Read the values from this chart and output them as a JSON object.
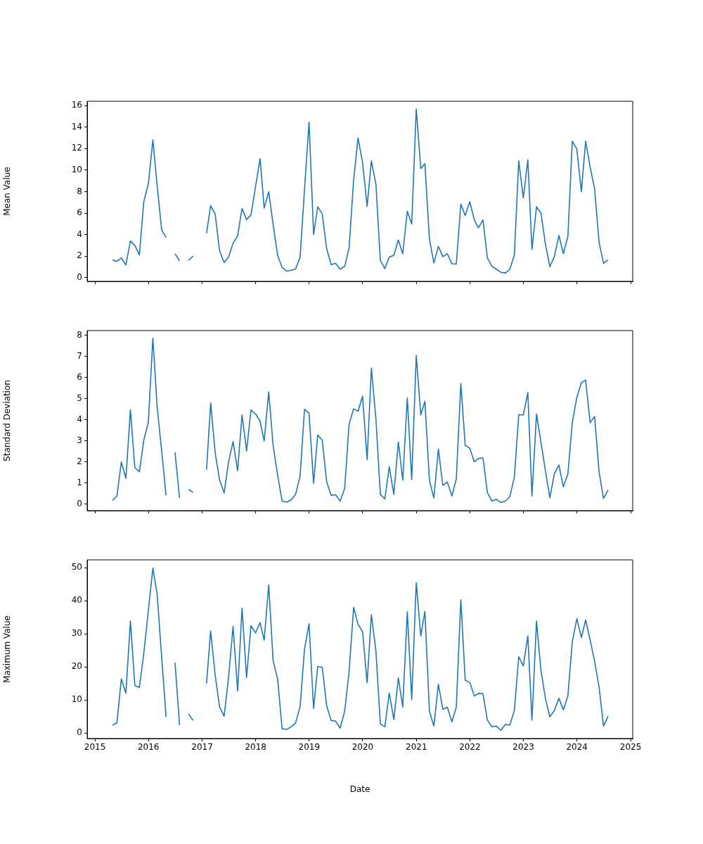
{
  "chart_data": [
    {
      "type": "line",
      "ylabel": "Mean Value",
      "color": "#1f77b4",
      "tick_labels": "y",
      "x": [
        "2015-04-30",
        "2015-05-31",
        "2015-06-30",
        "2015-07-31",
        "2015-08-31",
        "2015-09-30",
        "2015-10-31",
        "2015-11-30",
        "2015-12-31",
        "2016-01-31",
        "2016-02-29",
        "2016-03-31",
        "2016-04-30",
        "2016-05-31",
        "2016-06-30",
        "2016-07-31",
        "2016-08-31",
        "2016-09-30",
        "2016-10-31",
        "2016-11-30",
        "2016-12-31",
        "2017-01-31",
        "2017-02-28",
        "2017-03-31",
        "2017-04-30",
        "2017-05-31",
        "2017-06-30",
        "2017-07-31",
        "2017-08-31",
        "2017-09-30",
        "2017-10-31",
        "2017-11-30",
        "2017-12-31",
        "2018-01-31",
        "2018-02-28",
        "2018-03-31",
        "2018-04-30",
        "2018-05-31",
        "2018-06-30",
        "2018-07-31",
        "2018-08-31",
        "2018-09-30",
        "2018-10-31",
        "2018-11-30",
        "2018-12-31",
        "2019-01-31",
        "2019-02-28",
        "2019-03-31",
        "2019-04-30",
        "2019-05-31",
        "2019-06-30",
        "2019-07-31",
        "2019-08-31",
        "2019-09-30",
        "2019-10-31",
        "2019-11-30",
        "2019-12-31",
        "2020-01-31",
        "2020-02-29",
        "2020-03-31",
        "2020-04-30",
        "2020-05-31",
        "2020-06-30",
        "2020-07-31",
        "2020-08-31",
        "2020-09-30",
        "2020-10-31",
        "2020-11-30",
        "2020-12-31",
        "2021-01-31",
        "2021-02-28",
        "2021-03-31",
        "2021-04-30",
        "2021-05-31",
        "2021-06-30",
        "2021-07-31",
        "2021-08-31",
        "2021-09-30",
        "2021-10-31",
        "2021-11-30",
        "2021-12-31",
        "2022-01-31",
        "2022-02-28",
        "2022-03-31",
        "2022-04-30",
        "2022-05-31",
        "2022-06-30",
        "2022-07-31",
        "2022-08-31",
        "2022-09-30",
        "2022-10-31",
        "2022-11-30",
        "2022-12-31",
        "2023-01-31",
        "2023-02-28",
        "2023-03-31",
        "2023-04-30",
        "2023-05-31",
        "2023-06-30",
        "2023-07-31",
        "2023-08-31",
        "2023-09-30",
        "2023-10-31",
        "2023-11-30",
        "2023-12-31",
        "2024-01-31",
        "2024-02-29",
        "2024-03-31",
        "2024-04-30",
        "2024-05-31",
        "2024-06-30",
        "2024-07-31"
      ],
      "values": [
        1.64,
        1.5,
        1.83,
        1.19,
        3.41,
        3.0,
        2.11,
        7.06,
        8.7,
        12.8,
        8.6,
        4.44,
        3.72,
        null,
        2.22,
        1.56,
        null,
        1.6,
        2.01,
        null,
        null,
        4.13,
        6.69,
        5.89,
        2.48,
        1.4,
        1.93,
        3.2,
        3.88,
        6.43,
        5.4,
        5.83,
        8.44,
        11.07,
        6.47,
        7.99,
        4.95,
        2.05,
        0.94,
        0.6,
        0.68,
        0.8,
        1.87,
        8.2,
        14.46,
        4.02,
        6.59,
        5.93,
        2.69,
        1.21,
        1.33,
        0.78,
        1.05,
        2.75,
        9.06,
        13.0,
        10.7,
        6.63,
        10.86,
        8.69,
        1.6,
        0.84,
        1.91,
        2.07,
        3.49,
        2.22,
        6.18,
        4.99,
        15.69,
        10.14,
        10.6,
        3.57,
        1.36,
        2.9,
        1.95,
        2.22,
        1.29,
        1.25,
        6.84,
        5.77,
        7.06,
        5.36,
        4.64,
        5.36,
        1.83,
        1.05,
        0.78,
        0.49,
        0.43,
        0.78,
        2.11,
        10.86,
        7.41,
        10.96,
        2.63,
        6.59,
        6.02,
        3.1,
        1.01,
        1.97,
        3.92,
        2.24,
        3.82,
        12.69,
        11.97,
        7.99,
        12.71,
        10.29,
        8.28,
        3.26,
        1.33,
        1.66
      ],
      "xlim": [
        "2014-11-09",
        "2025-01-15"
      ],
      "xticks": [
        "2015",
        "2016",
        "2017",
        "2018",
        "2019",
        "2020",
        "2021",
        "2022",
        "2023",
        "2024",
        "2025"
      ],
      "ylim": [
        -0.35,
        16.41
      ],
      "yticks": [
        0,
        2,
        4,
        6,
        8,
        10,
        12,
        14,
        16
      ]
    },
    {
      "type": "line",
      "ylabel": "Standard Deviation",
      "color": "#1f77b4",
      "tick_labels": "y",
      "x": [
        "2015-04-30",
        "2015-05-31",
        "2015-06-30",
        "2015-07-31",
        "2015-08-31",
        "2015-09-30",
        "2015-10-31",
        "2015-11-30",
        "2015-12-31",
        "2016-01-31",
        "2016-02-29",
        "2016-03-31",
        "2016-04-30",
        "2016-05-31",
        "2016-06-30",
        "2016-07-31",
        "2016-08-31",
        "2016-09-30",
        "2016-10-31",
        "2016-11-30",
        "2016-12-31",
        "2017-01-31",
        "2017-02-28",
        "2017-03-31",
        "2017-04-30",
        "2017-05-31",
        "2017-06-30",
        "2017-07-31",
        "2017-08-31",
        "2017-09-30",
        "2017-10-31",
        "2017-11-30",
        "2017-12-31",
        "2018-01-31",
        "2018-02-28",
        "2018-03-31",
        "2018-04-30",
        "2018-05-31",
        "2018-06-30",
        "2018-07-31",
        "2018-08-31",
        "2018-09-30",
        "2018-10-31",
        "2018-11-30",
        "2018-12-31",
        "2019-01-31",
        "2019-02-28",
        "2019-03-31",
        "2019-04-30",
        "2019-05-31",
        "2019-06-30",
        "2019-07-31",
        "2019-08-31",
        "2019-09-30",
        "2019-10-31",
        "2019-11-30",
        "2019-12-31",
        "2020-01-31",
        "2020-02-29",
        "2020-03-31",
        "2020-04-30",
        "2020-05-31",
        "2020-06-30",
        "2020-07-31",
        "2020-08-31",
        "2020-09-30",
        "2020-10-31",
        "2020-11-30",
        "2020-12-31",
        "2021-01-31",
        "2021-02-28",
        "2021-03-31",
        "2021-04-30",
        "2021-05-31",
        "2021-06-30",
        "2021-07-31",
        "2021-08-31",
        "2021-09-30",
        "2021-10-31",
        "2021-11-30",
        "2021-12-31",
        "2022-01-31",
        "2022-02-28",
        "2022-03-31",
        "2022-04-30",
        "2022-05-31",
        "2022-06-30",
        "2022-07-31",
        "2022-08-31",
        "2022-09-30",
        "2022-10-31",
        "2022-11-30",
        "2022-12-31",
        "2023-01-31",
        "2023-02-28",
        "2023-03-31",
        "2023-04-30",
        "2023-05-31",
        "2023-06-30",
        "2023-07-31",
        "2023-08-31",
        "2023-09-30",
        "2023-10-31",
        "2023-11-30",
        "2023-12-31",
        "2024-01-31",
        "2024-02-29",
        "2024-03-31",
        "2024-04-30",
        "2024-05-31",
        "2024-06-30",
        "2024-07-31"
      ],
      "values": [
        0.18,
        0.39,
        2.01,
        1.23,
        4.47,
        1.74,
        1.54,
        3.03,
        3.89,
        7.87,
        4.62,
        2.53,
        0.42,
        null,
        2.46,
        0.3,
        null,
        0.7,
        0.56,
        null,
        null,
        1.64,
        4.8,
        2.43,
        1.15,
        0.54,
        2.01,
        2.97,
        1.59,
        4.23,
        2.53,
        4.47,
        4.28,
        3.94,
        3.0,
        5.33,
        2.79,
        1.38,
        0.16,
        0.1,
        0.21,
        0.47,
        1.33,
        4.5,
        4.31,
        0.99,
        3.28,
        3.03,
        1.07,
        0.42,
        0.46,
        0.15,
        0.75,
        3.79,
        4.52,
        4.41,
        5.12,
        2.11,
        6.45,
        4.05,
        0.47,
        0.25,
        1.78,
        0.47,
        2.95,
        1.14,
        5.04,
        1.17,
        7.05,
        4.23,
        4.88,
        1.12,
        0.3,
        2.62,
        0.9,
        1.05,
        0.39,
        1.19,
        5.72,
        2.79,
        2.66,
        2.01,
        2.17,
        2.2,
        0.56,
        0.15,
        0.24,
        0.09,
        0.15,
        0.36,
        1.28,
        4.25,
        4.23,
        5.29,
        0.39,
        4.28,
        2.95,
        1.59,
        0.31,
        1.45,
        1.86,
        0.83,
        1.43,
        3.87,
        5.06,
        5.77,
        5.88,
        3.87,
        4.16,
        1.51,
        0.28,
        0.67
      ],
      "xlim": [
        "2014-11-09",
        "2025-01-15"
      ],
      "xticks": [
        "2015",
        "2016",
        "2017",
        "2018",
        "2019",
        "2020",
        "2021",
        "2022",
        "2023",
        "2024",
        "2025"
      ],
      "ylim": [
        -0.3,
        8.23
      ],
      "yticks": [
        0,
        1,
        2,
        3,
        4,
        5,
        6,
        7,
        8
      ]
    },
    {
      "type": "line",
      "ylabel": "Maximum Value",
      "xlabel": "Date",
      "color": "#1f77b4",
      "x": [
        "2015-04-30",
        "2015-05-31",
        "2015-06-30",
        "2015-07-31",
        "2015-08-31",
        "2015-09-30",
        "2015-10-31",
        "2015-11-30",
        "2015-12-31",
        "2016-01-31",
        "2016-02-29",
        "2016-03-31",
        "2016-04-30",
        "2016-05-31",
        "2016-06-30",
        "2016-07-31",
        "2016-08-31",
        "2016-09-30",
        "2016-10-31",
        "2016-11-30",
        "2016-12-31",
        "2017-01-31",
        "2017-02-28",
        "2017-03-31",
        "2017-04-30",
        "2017-05-31",
        "2017-06-30",
        "2017-07-31",
        "2017-08-31",
        "2017-09-30",
        "2017-10-31",
        "2017-11-30",
        "2017-12-31",
        "2018-01-31",
        "2018-02-28",
        "2018-03-31",
        "2018-04-30",
        "2018-05-31",
        "2018-06-30",
        "2018-07-31",
        "2018-08-31",
        "2018-09-30",
        "2018-10-31",
        "2018-11-30",
        "2018-12-31",
        "2019-01-31",
        "2019-02-28",
        "2019-03-31",
        "2019-04-30",
        "2019-05-31",
        "2019-06-30",
        "2019-07-31",
        "2019-08-31",
        "2019-09-30",
        "2019-10-31",
        "2019-11-30",
        "2019-12-31",
        "2020-01-31",
        "2020-02-29",
        "2020-03-31",
        "2020-04-30",
        "2020-05-31",
        "2020-06-30",
        "2020-07-31",
        "2020-08-31",
        "2020-09-30",
        "2020-10-31",
        "2020-11-30",
        "2020-12-31",
        "2021-01-31",
        "2021-02-28",
        "2021-03-31",
        "2021-04-30",
        "2021-05-31",
        "2021-06-30",
        "2021-07-31",
        "2021-08-31",
        "2021-09-30",
        "2021-10-31",
        "2021-11-30",
        "2021-12-31",
        "2022-01-31",
        "2022-02-28",
        "2022-03-31",
        "2022-04-30",
        "2022-05-31",
        "2022-06-30",
        "2022-07-31",
        "2022-08-31",
        "2022-09-30",
        "2022-10-31",
        "2022-11-30",
        "2022-12-31",
        "2023-01-31",
        "2023-02-28",
        "2023-03-31",
        "2023-04-30",
        "2023-05-31",
        "2023-06-30",
        "2023-07-31",
        "2023-08-31",
        "2023-09-30",
        "2023-10-31",
        "2023-11-30",
        "2023-12-31",
        "2024-01-31",
        "2024-02-29",
        "2024-03-31",
        "2024-04-30",
        "2024-05-31",
        "2024-06-30",
        "2024-07-31"
      ],
      "values": [
        2.4,
        3.1,
        16.4,
        12.1,
        33.9,
        14.4,
        13.8,
        24,
        37,
        49.9,
        42.0,
        23,
        4.9,
        null,
        21.3,
        2.4,
        null,
        5.8,
        3.8,
        null,
        null,
        15.0,
        30.9,
        17.5,
        7.9,
        5.1,
        16.8,
        32.3,
        12.7,
        37.8,
        16.8,
        32.5,
        30.3,
        33.4,
        28.1,
        44.8,
        21.9,
        16.3,
        1.3,
        1.1,
        1.9,
        3.0,
        8.0,
        25.4,
        33.1,
        7.4,
        20.1,
        19.9,
        8.2,
        3.8,
        3.6,
        1.5,
        6.6,
        18.5,
        38.0,
        32.9,
        30.7,
        15.2,
        35.8,
        24.8,
        2.8,
        1.9,
        12.1,
        4.1,
        16.7,
        7.9,
        36.7,
        10.1,
        45.5,
        29.4,
        36.8,
        6.6,
        2.1,
        14.8,
        7.2,
        7.8,
        3.4,
        7.8,
        40.3,
        16.0,
        15.3,
        11.2,
        12.0,
        11.9,
        3.9,
        1.9,
        2.1,
        0.8,
        2.6,
        2.4,
        6.8,
        23.1,
        20.3,
        29.4,
        3.9,
        33.8,
        19.1,
        10.4,
        4.9,
        6.8,
        10.5,
        7.0,
        11.2,
        27.6,
        34.6,
        28.9,
        34.2,
        28.1,
        21.8,
        13.8,
        2.1,
        5.1
      ],
      "xlim": [
        "2014-11-09",
        "2025-01-15"
      ],
      "xticks": [
        "2015",
        "2016",
        "2017",
        "2018",
        "2019",
        "2020",
        "2021",
        "2022",
        "2023",
        "2024",
        "2025"
      ],
      "ylim": [
        -1.65,
        52.4
      ],
      "yticks": [
        0,
        10,
        20,
        30,
        40,
        50
      ]
    }
  ]
}
